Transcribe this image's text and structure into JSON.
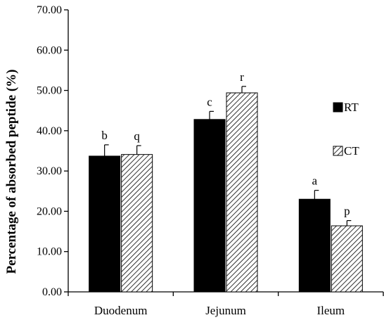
{
  "chart_data": {
    "type": "bar",
    "ylabel": "Percentage of absorbed peptide (%)",
    "xlabel": "",
    "ylim": [
      0,
      70
    ],
    "yticks": [
      "0.00",
      "10.00",
      "20.00",
      "30.00",
      "40.00",
      "50.00",
      "60.00",
      "70.00"
    ],
    "yticks_values": [
      0,
      10,
      20,
      30,
      40,
      50,
      60,
      70
    ],
    "categories": [
      "Duodenum",
      "Jejunum",
      "Ileum"
    ],
    "series": [
      {
        "name": "RT",
        "values": [
          33.7,
          42.8,
          23.0
        ],
        "errors": [
          2.8,
          2.0,
          2.2
        ],
        "labels": [
          "b",
          "c",
          "a"
        ],
        "color": "#000000",
        "fill": "solid"
      },
      {
        "name": "CT",
        "values": [
          34.1,
          49.4,
          16.4
        ],
        "errors": [
          2.2,
          1.6,
          1.3
        ],
        "labels": [
          "q",
          "r",
          "p"
        ],
        "color": "#000000",
        "fill": "hatched"
      }
    ],
    "grid": false,
    "legend": "right"
  }
}
